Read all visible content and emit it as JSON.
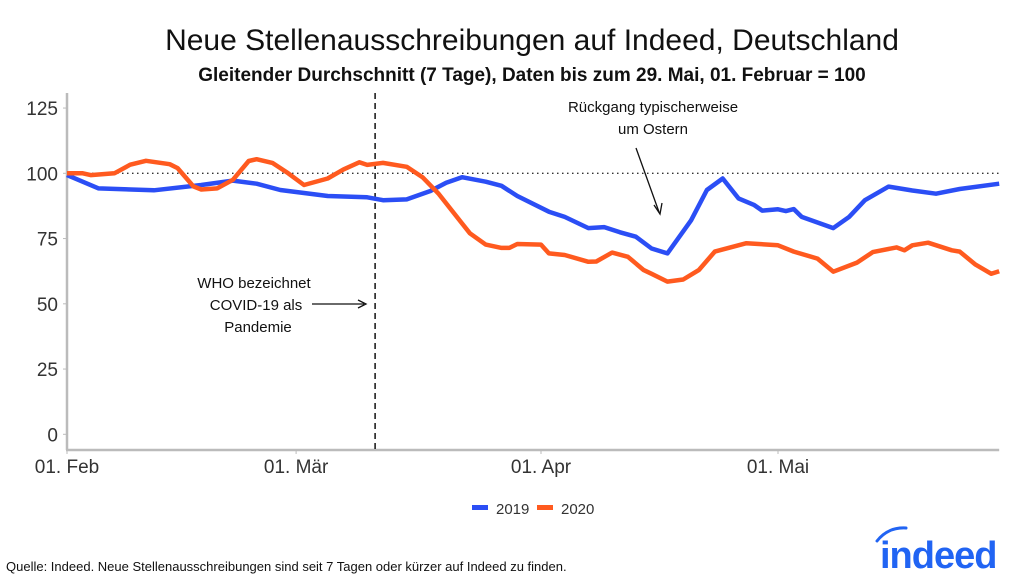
{
  "chart_data": {
    "type": "line",
    "title": "Neue Stellenausschreibungen auf Indeed, Deutschland",
    "subtitle": "Gleitender Durchschnitt (7 Tage), Daten bis zum 29. Mai, 01. Februar = 100",
    "xlabel": "",
    "ylabel": "",
    "ylim": [
      0,
      125
    ],
    "yticks": [
      0,
      25,
      50,
      75,
      100,
      125
    ],
    "xlim": [
      "2020-02-01",
      "2020-05-29"
    ],
    "xticks": [
      {
        "date": "2020-02-01",
        "label": "01. Feb"
      },
      {
        "date": "2020-03-01",
        "label": "01. Mär"
      },
      {
        "date": "2020-04-01",
        "label": "01. Apr"
      },
      {
        "date": "2020-05-01",
        "label": "01. Mai"
      }
    ],
    "grid": false,
    "reference_line": {
      "y": 100,
      "style": "dotted"
    },
    "event_line": {
      "date": "2020-03-11",
      "style": "dashed"
    },
    "annotations": [
      {
        "lines": [
          "WHO bezeichnet",
          "COVID-19 als",
          "Pandemie"
        ]
      },
      {
        "lines": [
          "Rückgang typischerweise",
          "um Ostern"
        ]
      }
    ],
    "legend_placement": "bottom",
    "series": [
      {
        "name": "2019",
        "color": "#2b4ef5",
        "points": [
          [
            "2020-02-01",
            99.3
          ],
          [
            "2020-02-05",
            94.2
          ],
          [
            "2020-02-12",
            93.5
          ],
          [
            "2020-02-18",
            95.5
          ],
          [
            "2020-02-22",
            97.2
          ],
          [
            "2020-02-25",
            96
          ],
          [
            "2020-02-28",
            93.6
          ],
          [
            "2020-03-05",
            91.3
          ],
          [
            "2020-03-10",
            90.8
          ],
          [
            "2020-03-12",
            89.7
          ],
          [
            "2020-03-15",
            90
          ],
          [
            "2020-03-18",
            93.2
          ],
          [
            "2020-03-20",
            96.4
          ],
          [
            "2020-03-22",
            98.5
          ],
          [
            "2020-03-25",
            96.8
          ],
          [
            "2020-03-27",
            95.2
          ],
          [
            "2020-03-29",
            91.3
          ],
          [
            "2020-04-02",
            85.3
          ],
          [
            "2020-04-04",
            83.3
          ],
          [
            "2020-04-07",
            79
          ],
          [
            "2020-04-09",
            79.4
          ],
          [
            "2020-04-11",
            77.4
          ],
          [
            "2020-04-13",
            75.7
          ],
          [
            "2020-04-15",
            71.2
          ],
          [
            "2020-04-17",
            69.3
          ],
          [
            "2020-04-20",
            82
          ],
          [
            "2020-04-22",
            93.6
          ],
          [
            "2020-04-24",
            98
          ],
          [
            "2020-04-26",
            90.4
          ],
          [
            "2020-04-28",
            87.8
          ],
          [
            "2020-04-29",
            85.7
          ],
          [
            "2020-05-01",
            86.2
          ],
          [
            "2020-05-02",
            85.5
          ],
          [
            "2020-05-03",
            86.3
          ],
          [
            "2020-05-04",
            83.3
          ],
          [
            "2020-05-08",
            79
          ],
          [
            "2020-05-10",
            83.3
          ],
          [
            "2020-05-12",
            89.7
          ],
          [
            "2020-05-15",
            94.9
          ],
          [
            "2020-05-18",
            93.4
          ],
          [
            "2020-05-21",
            92.2
          ],
          [
            "2020-05-24",
            94
          ],
          [
            "2020-05-29",
            96
          ]
        ]
      },
      {
        "name": "2020",
        "color": "#ff5a1f",
        "points": [
          [
            "2020-02-01",
            100
          ],
          [
            "2020-02-03",
            100
          ],
          [
            "2020-02-04",
            99.3
          ],
          [
            "2020-02-07",
            100
          ],
          [
            "2020-02-09",
            103.3
          ],
          [
            "2020-02-11",
            104.8
          ],
          [
            "2020-02-14",
            103.5
          ],
          [
            "2020-02-15",
            102
          ],
          [
            "2020-02-17",
            95
          ],
          [
            "2020-02-18",
            93.8
          ],
          [
            "2020-02-20",
            94.2
          ],
          [
            "2020-02-22",
            97.5
          ],
          [
            "2020-02-24",
            104.7
          ],
          [
            "2020-02-25",
            105.4
          ],
          [
            "2020-02-27",
            104
          ],
          [
            "2020-02-29",
            100
          ],
          [
            "2020-03-02",
            95.5
          ],
          [
            "2020-03-05",
            98
          ],
          [
            "2020-03-07",
            101.5
          ],
          [
            "2020-03-09",
            104.2
          ],
          [
            "2020-03-10",
            103.2
          ],
          [
            "2020-03-12",
            104
          ],
          [
            "2020-03-15",
            102.5
          ],
          [
            "2020-03-17",
            98.5
          ],
          [
            "2020-03-19",
            92.3
          ],
          [
            "2020-03-22",
            80.8
          ],
          [
            "2020-03-23",
            77
          ],
          [
            "2020-03-25",
            72.7
          ],
          [
            "2020-03-27",
            71.4
          ],
          [
            "2020-03-28",
            71.4
          ],
          [
            "2020-03-29",
            72.9
          ],
          [
            "2020-04-01",
            72.7
          ],
          [
            "2020-04-02",
            69.3
          ],
          [
            "2020-04-04",
            68.7
          ],
          [
            "2020-04-07",
            66.1
          ],
          [
            "2020-04-08",
            66.2
          ],
          [
            "2020-04-10",
            69.6
          ],
          [
            "2020-04-12",
            68
          ],
          [
            "2020-04-14",
            62.9
          ],
          [
            "2020-04-15",
            61.5
          ],
          [
            "2020-04-17",
            58.5
          ],
          [
            "2020-04-19",
            59.3
          ],
          [
            "2020-04-21",
            63
          ],
          [
            "2020-04-23",
            70
          ],
          [
            "2020-04-27",
            73.2
          ],
          [
            "2020-05-01",
            72.4
          ],
          [
            "2020-05-03",
            70
          ],
          [
            "2020-05-06",
            67.3
          ],
          [
            "2020-05-08",
            62.3
          ],
          [
            "2020-05-11",
            65.8
          ],
          [
            "2020-05-13",
            69.8
          ],
          [
            "2020-05-16",
            71.6
          ],
          [
            "2020-05-17",
            70.5
          ],
          [
            "2020-05-18",
            72.4
          ],
          [
            "2020-05-20",
            73.4
          ],
          [
            "2020-05-23",
            70.5
          ],
          [
            "2020-05-24",
            70
          ],
          [
            "2020-05-26",
            65
          ],
          [
            "2020-05-28",
            61.5
          ],
          [
            "2020-05-29",
            62.5
          ]
        ]
      }
    ]
  },
  "footer": {
    "source": "Quelle: Indeed. Neue Stellenausschreibungen sind seit 7 Tagen oder kürzer auf Indeed zu finden.",
    "logo_text": "indeed"
  }
}
